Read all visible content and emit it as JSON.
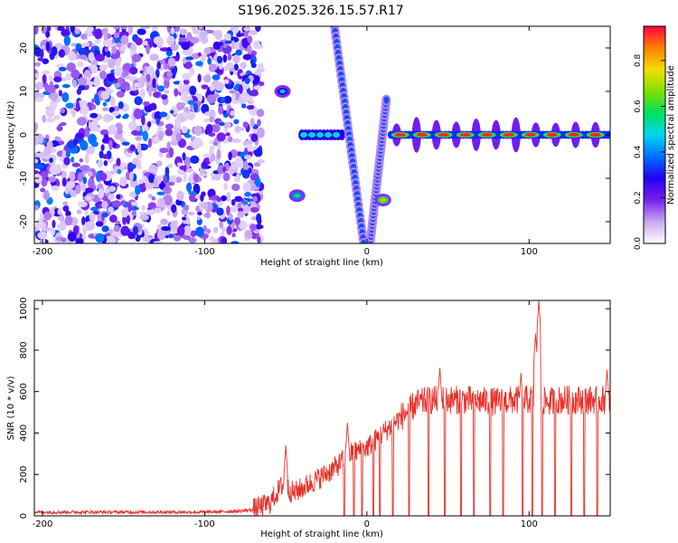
{
  "title": "S196.2025.326.15.57.R17",
  "chart_data": [
    {
      "type": "heatmap",
      "xlabel": "Height of straight line (km)",
      "ylabel": "Frequency (Hz)",
      "xlim": [
        -205,
        150
      ],
      "ylim": [
        -25,
        25
      ],
      "xticks": [
        -200,
        -100,
        0,
        100
      ],
      "xtick_labels": [
        "-200",
        "-100",
        "0",
        "100"
      ],
      "yticks": [
        -20,
        -10,
        0,
        10,
        20
      ],
      "ytick_labels": [
        "-20",
        "-10",
        "0",
        "10",
        "20"
      ],
      "colorbar": {
        "label": "Normalized spectral amplitude",
        "range": [
          0,
          0.95
        ],
        "ticks": [
          0.0,
          0.2,
          0.4,
          0.6,
          0.8
        ],
        "tick_labels": [
          "0.0",
          "0.2",
          "0.4",
          "0.6",
          "0.8"
        ],
        "colormap": [
          "#ffffff",
          "#c8a8f0",
          "#7a20f0",
          "#2000f0",
          "#0070ff",
          "#00d8f0",
          "#00e060",
          "#80e000",
          "#f0e000",
          "#ff8000",
          "#ff0040"
        ]
      },
      "features": [
        {
          "name": "noise-region",
          "x_range": [
            -205,
            -65
          ],
          "f_range": [
            -25,
            25
          ],
          "amplitude": 0.2
        },
        {
          "name": "carrier-tone",
          "x_range": [
            15,
            150
          ],
          "frequency": 0,
          "amplitude": 0.9
        },
        {
          "name": "tone-segments",
          "x_range": [
            -40,
            -15
          ],
          "frequency": 0,
          "amplitude": 0.5
        },
        {
          "name": "ghost-line-upper",
          "x_start": -20,
          "x_end": -2,
          "f_start": 25,
          "f_end": -25,
          "amplitude": 0.35
        },
        {
          "name": "ghost-line-lower",
          "x_start": 2,
          "x_end": 12,
          "f_start": -25,
          "f_end": 8,
          "amplitude": 0.35
        },
        {
          "name": "side-blob",
          "x": 10,
          "frequency": -15,
          "amplitude": 0.6
        },
        {
          "name": "side-blob",
          "x": -43,
          "frequency": -14,
          "amplitude": 0.4
        },
        {
          "name": "side-blob",
          "x": -52,
          "frequency": 10,
          "amplitude": 0.3
        }
      ]
    },
    {
      "type": "line",
      "xlabel": "Height of straight line (km)",
      "ylabel": "SNR (10 * v/v)",
      "xlim": [
        -205,
        150
      ],
      "ylim": [
        0,
        1040
      ],
      "xticks": [
        -200,
        -100,
        0,
        100
      ],
      "xtick_labels": [
        "-200",
        "-100",
        "0",
        "100"
      ],
      "yticks": [
        0,
        200,
        400,
        600,
        800,
        1000
      ],
      "ytick_labels": [
        "0",
        "200",
        "400",
        "600",
        "800",
        "1000"
      ],
      "series": [
        {
          "name": "SNR",
          "color": "#e8302a",
          "trend": {
            "x": [
              -205,
              -150,
              -100,
              -80,
              -70,
              -60,
              -52,
              -45,
              -30,
              -20,
              -10,
              0,
              10,
              20,
              30,
              40,
              60,
              80,
              95,
              100,
              105,
              110,
              120,
              135,
              150
            ],
            "y": [
              18,
              18,
              18,
              22,
              30,
              60,
              150,
              110,
              180,
              230,
              300,
              330,
              400,
              470,
              540,
              560,
              560,
              550,
              560,
              560,
              580,
              550,
              560,
              560,
              560
            ]
          },
          "spikes": [
            {
              "x": -50,
              "y": 340
            },
            {
              "x": -12,
              "y": 450
            },
            {
              "x": 45,
              "y": 715
            },
            {
              "x": 95,
              "y": 690
            },
            {
              "x": 104,
              "y": 880
            },
            {
              "x": 106,
              "y": 1040
            },
            {
              "x": 148,
              "y": 705
            }
          ],
          "dropouts_x": [
            -14,
            -8,
            -3,
            4,
            8,
            16,
            26,
            38,
            48,
            58,
            66,
            76,
            84,
            96,
            102,
            108,
            116,
            126,
            134,
            142
          ]
        }
      ]
    }
  ]
}
